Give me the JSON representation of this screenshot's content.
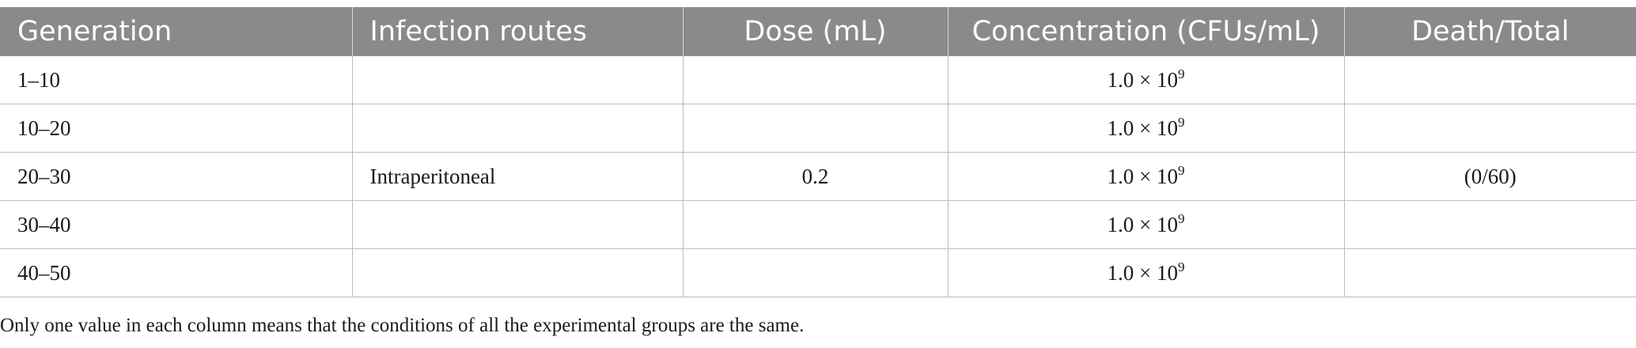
{
  "table": {
    "headers": [
      "Generation",
      "Infection routes",
      "Dose (mL)",
      "Concentration (CFUs/mL)",
      "Death/Total"
    ],
    "rows": [
      {
        "generation": "1–10",
        "route": "",
        "dose": "",
        "concentration": "1.0 × 10",
        "concentration_exp": "9",
        "death_total": ""
      },
      {
        "generation": "10–20",
        "route": "",
        "dose": "",
        "concentration": "1.0 × 10",
        "concentration_exp": "9",
        "death_total": ""
      },
      {
        "generation": "20–30",
        "route": "Intraperitoneal",
        "dose": "0.2",
        "concentration": "1.0 × 10",
        "concentration_exp": "9",
        "death_total": "(0/60)"
      },
      {
        "generation": "30–40",
        "route": "",
        "dose": "",
        "concentration": "1.0 × 10",
        "concentration_exp": "9",
        "death_total": ""
      },
      {
        "generation": "40–50",
        "route": "",
        "dose": "",
        "concentration": "1.0 × 10",
        "concentration_exp": "9",
        "death_total": ""
      }
    ]
  },
  "footnote": "Only one value in each column means that the conditions of all the experimental groups are the same.",
  "colors": {
    "header_bg": "#8a8a8a",
    "header_text": "#ffffff",
    "grid": "#bdbdbd"
  }
}
